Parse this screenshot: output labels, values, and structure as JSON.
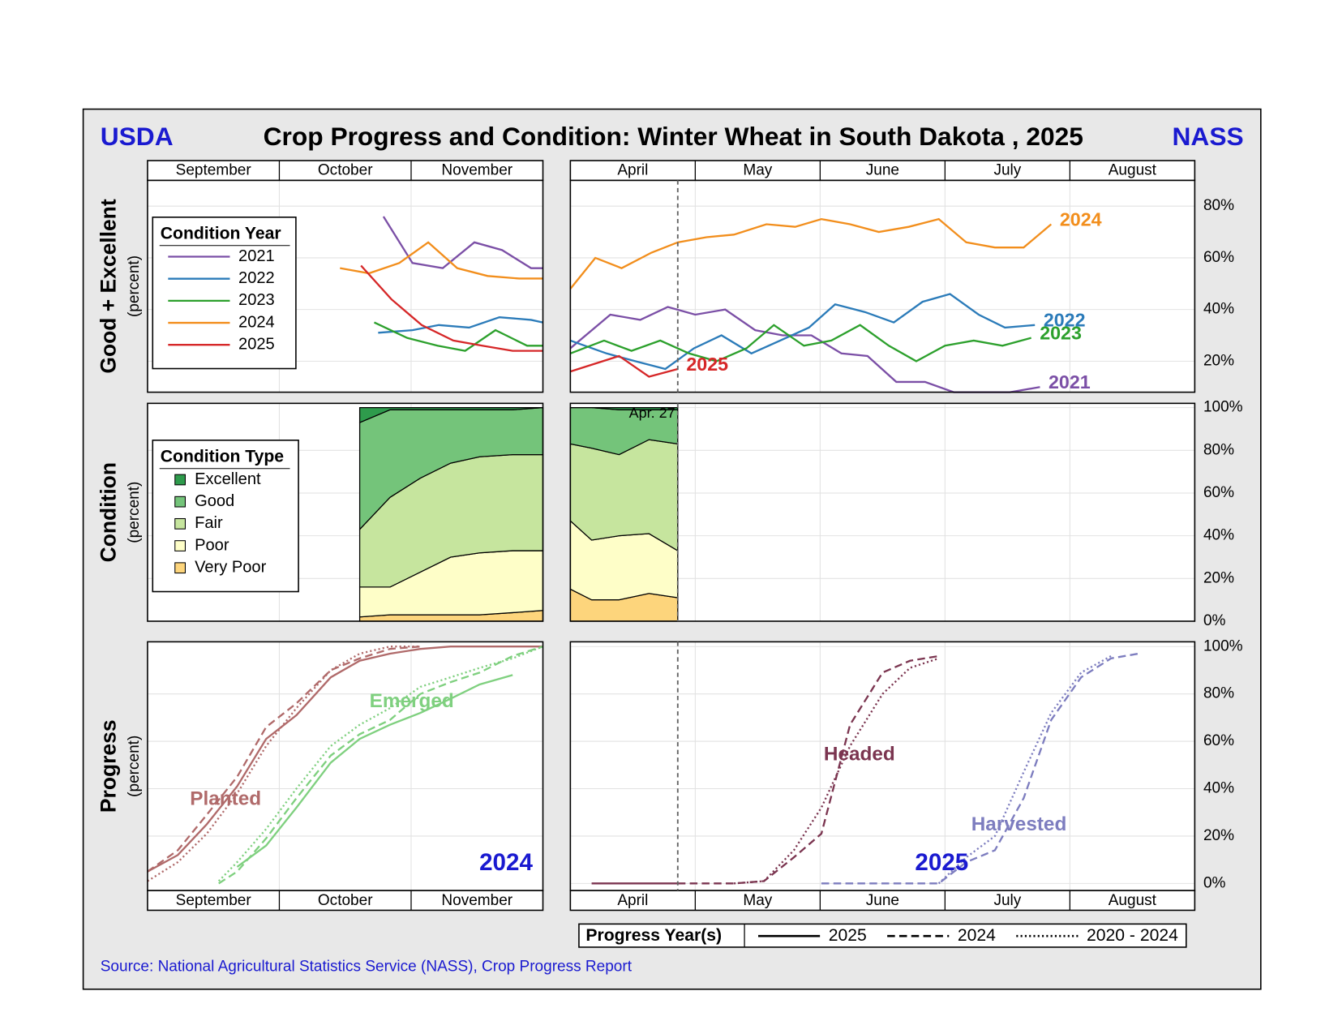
{
  "header": {
    "left": "USDA",
    "title": "Crop Progress and Condition: Winter Wheat in South Dakota , 2025",
    "right": "NASS"
  },
  "source": "Source: National Agricultural Statistics Service (NASS), Crop Progress Report",
  "progress_legend": {
    "title": "Progress Year(s)",
    "entries": [
      {
        "label": "2025",
        "style": "solid"
      },
      {
        "label": "2024",
        "style": "dashed"
      },
      {
        "label": "2020 - 2024",
        "style": "dotted"
      }
    ]
  },
  "chart_data": [
    {
      "type": "line",
      "y_label": "Good + Excellent",
      "y_sublabel": "(percent)",
      "months": [
        "September",
        "October",
        "November"
      ],
      "months_position": "top",
      "xlim": [
        0,
        3
      ],
      "xticks": [
        1,
        2
      ],
      "ylim": [
        8,
        90
      ],
      "yticks": [
        20,
        40,
        60,
        80
      ],
      "grid": true,
      "legend": "upper left",
      "legend_title": "Condition Year",
      "series": [
        {
          "name": "2021",
          "color": "#7b4fa6",
          "x": [
            1.79,
            2.01,
            2.24,
            2.48,
            2.69,
            2.91,
            3.0
          ],
          "values": [
            76,
            58,
            56,
            66,
            63,
            56,
            56
          ]
        },
        {
          "name": "2022",
          "color": "#2b7bb9",
          "x": [
            1.75,
            2.01,
            2.21,
            2.44,
            2.67,
            2.91,
            3.0
          ],
          "values": [
            31,
            32,
            34,
            33,
            37,
            36,
            35
          ]
        },
        {
          "name": "2023",
          "color": "#2ca02c",
          "x": [
            1.72,
            1.97,
            2.2,
            2.41,
            2.64,
            2.88,
            3.0
          ],
          "values": [
            35,
            29,
            26,
            24,
            32,
            26,
            26
          ]
        },
        {
          "name": "2024",
          "color": "#f28e1c",
          "x": [
            1.46,
            1.68,
            1.91,
            2.13,
            2.35,
            2.58,
            2.82,
            3.0
          ],
          "values": [
            56,
            54,
            58,
            66,
            56,
            53,
            52,
            52
          ]
        },
        {
          "name": "2025",
          "color": "#d62728",
          "x": [
            1.62,
            1.85,
            2.08,
            2.32,
            2.54,
            2.77,
            3.0
          ],
          "values": [
            57,
            44,
            34,
            28,
            26,
            24,
            24
          ]
        }
      ]
    },
    {
      "type": "line",
      "months": [
        "April",
        "May",
        "June",
        "July",
        "August"
      ],
      "months_position": "top",
      "series_labels": "end",
      "xlim": [
        0,
        5
      ],
      "xticks": [
        1,
        2,
        3,
        4
      ],
      "ylim": [
        8,
        90
      ],
      "grid": true,
      "yticks": [
        {
          "value": 20,
          "label": "20%"
        },
        {
          "value": 40,
          "label": "40%"
        },
        {
          "value": 60,
          "label": "60%"
        },
        {
          "value": 80,
          "label": "80%"
        }
      ],
      "series": [
        {
          "name": "2021",
          "color": "#7b4fa6",
          "x": [
            0,
            0.32,
            0.56,
            0.78,
            1.0,
            1.24,
            1.48,
            1.7,
            1.93,
            2.17,
            2.38,
            2.61,
            2.84,
            3.07,
            3.3,
            3.52,
            3.76
          ],
          "values": [
            25,
            38,
            36,
            41,
            38,
            40,
            32,
            30,
            30,
            23,
            22,
            12,
            12,
            8,
            8,
            8,
            10
          ]
        },
        {
          "name": "2022",
          "color": "#2b7bb9",
          "x": [
            0,
            0.29,
            0.52,
            0.76,
            0.99,
            1.21,
            1.45,
            1.68,
            1.91,
            2.12,
            2.36,
            2.59,
            2.82,
            3.04,
            3.27,
            3.48,
            3.72
          ],
          "values": [
            28,
            23,
            20,
            17,
            25,
            30,
            23,
            28,
            33,
            42,
            39,
            35,
            43,
            46,
            38,
            33,
            34
          ]
        },
        {
          "name": "2023",
          "color": "#2ca02c",
          "x": [
            0,
            0.27,
            0.49,
            0.72,
            0.95,
            1.17,
            1.41,
            1.63,
            1.87,
            2.09,
            2.32,
            2.55,
            2.77,
            3.0,
            3.23,
            3.46,
            3.69
          ],
          "values": [
            23,
            28,
            24,
            28,
            23,
            20,
            25,
            34,
            26,
            28,
            34,
            26,
            20,
            26,
            28,
            26,
            29
          ]
        },
        {
          "name": "2024",
          "color": "#f28e1c",
          "x": [
            0,
            0.2,
            0.41,
            0.65,
            0.86,
            1.09,
            1.31,
            1.57,
            1.8,
            2.01,
            2.24,
            2.47,
            2.71,
            2.95,
            3.17,
            3.4,
            3.63,
            3.85
          ],
          "values": [
            48,
            60,
            56,
            62,
            66,
            68,
            69,
            73,
            72,
            75,
            73,
            70,
            72,
            75,
            66,
            64,
            64,
            73
          ]
        },
        {
          "name": "2025",
          "color": "#d62728",
          "x": [
            0,
            0.39,
            0.63,
            0.86
          ],
          "values": [
            16,
            22,
            14,
            17
          ]
        }
      ]
    },
    {
      "type": "area",
      "y_label": "Condition",
      "y_sublabel": "(percent)",
      "legend": "upper left",
      "legend_title": "Condition Type",
      "xlim": [
        0,
        3
      ],
      "xticks": [
        1,
        2
      ],
      "ylim": [
        0,
        102
      ],
      "yticks": [
        20,
        40,
        60,
        80
      ],
      "grid": true,
      "x": [
        1.61,
        1.84,
        2.07,
        2.3,
        2.52,
        2.77,
        3.0
      ],
      "series": [
        {
          "name": "Excellent",
          "color": "#2e9b4c",
          "values": [
            7,
            1,
            1,
            1,
            1,
            1,
            0
          ]
        },
        {
          "name": "Good",
          "color": "#74c47a",
          "values": [
            50,
            41,
            32,
            25,
            22,
            21,
            22
          ]
        },
        {
          "name": "Fair",
          "color": "#c6e59e",
          "values": [
            27,
            42,
            44,
            44,
            45,
            45,
            45
          ]
        },
        {
          "name": "Poor",
          "color": "#fefec8",
          "values": [
            14,
            13,
            20,
            27,
            29,
            29,
            28
          ]
        },
        {
          "name": "Very Poor",
          "color": "#fdd57c",
          "values": [
            2,
            3,
            3,
            3,
            3,
            4,
            5
          ]
        }
      ]
    },
    {
      "type": "area",
      "xlim": [
        0,
        5
      ],
      "xticks": [
        1,
        2,
        3,
        4
      ],
      "ylim": [
        0,
        102
      ],
      "grid": true,
      "yticks": [
        {
          "value": 0,
          "label": "0%"
        },
        {
          "value": 20,
          "label": "20%"
        },
        {
          "value": 40,
          "label": "40%"
        },
        {
          "value": 60,
          "label": "60%"
        },
        {
          "value": 80,
          "label": "80%"
        },
        {
          "value": 100,
          "label": "100%"
        }
      ],
      "marker": {
        "x": 0.86,
        "label": "Apr. 27"
      },
      "x": [
        0,
        0.17,
        0.39,
        0.63,
        0.86
      ],
      "series": [
        {
          "color": "#2e9b4c",
          "values": [
            0,
            0,
            1,
            1,
            1
          ]
        },
        {
          "color": "#74c47a",
          "values": [
            17,
            19,
            21,
            14,
            16
          ]
        },
        {
          "color": "#c6e59e",
          "values": [
            36,
            43,
            38,
            44,
            50
          ]
        },
        {
          "color": "#fefec8",
          "values": [
            32,
            28,
            30,
            28,
            22
          ]
        },
        {
          "color": "#fdd57c",
          "values": [
            15,
            10,
            10,
            13,
            11
          ]
        }
      ]
    },
    {
      "type": "line",
      "y_label": "Progress",
      "y_sublabel": "(percent)",
      "months": [
        "September",
        "October",
        "November"
      ],
      "months_position": "bottom",
      "year_label": "2024",
      "xlim": [
        0,
        3
      ],
      "xticks": [
        1,
        2
      ],
      "ylim": [
        -3,
        102
      ],
      "yticks": [
        20,
        40,
        60,
        80
      ],
      "grid": true,
      "groups": [
        {
          "name": "Planted",
          "color": "#b06a6a",
          "series": [
            {
              "style": "solid",
              "x": [
                0,
                0.23,
                0.45,
                0.68,
                0.9,
                1.13,
                1.39,
                1.61,
                1.84,
                2.07,
                2.3,
                2.52,
                2.77,
                3.0
              ],
              "values": [
                5,
                12,
                25,
                41,
                61,
                71,
                87,
                94,
                97,
                99,
                100,
                100,
                100,
                100
              ]
            },
            {
              "style": "dashed",
              "x": [
                0,
                0.23,
                0.45,
                0.68,
                0.9,
                1.13,
                1.39,
                1.61,
                1.84,
                2.07
              ],
              "values": [
                5,
                14,
                29,
                45,
                66,
                76,
                90,
                95,
                99,
                100
              ]
            },
            {
              "style": "dotted",
              "x": [
                0,
                0.23,
                0.45,
                0.68,
                0.9,
                1.13,
                1.39,
                1.61,
                1.84,
                2.07
              ],
              "values": [
                1,
                9,
                21,
                38,
                58,
                74,
                90,
                97,
                100,
                100
              ]
            }
          ]
        },
        {
          "name": "Emerged",
          "color": "#7fd07f",
          "series": [
            {
              "style": "solid",
              "x": [
                0.68,
                0.9,
                1.13,
                1.39,
                1.61,
                1.84,
                2.07,
                2.3,
                2.52,
                2.77
              ],
              "values": [
                7,
                16,
                32,
                51,
                61,
                67,
                72,
                78,
                84,
                88
              ]
            },
            {
              "style": "dashed",
              "x": [
                0.54,
                0.68,
                0.9,
                1.13,
                1.39,
                1.61,
                1.84,
                2.07,
                2.3,
                2.52,
                2.77,
                3.0
              ],
              "values": [
                0,
                5,
                19,
                36,
                54,
                63,
                69,
                80,
                85,
                89,
                96,
                100
              ]
            },
            {
              "style": "dotted",
              "x": [
                0.54,
                0.68,
                0.9,
                1.13,
                1.39,
                1.61,
                1.84,
                2.07,
                2.3,
                2.52,
                2.77,
                3.0
              ],
              "values": [
                1,
                9,
                23,
                40,
                58,
                67,
                74,
                83,
                87,
                91,
                95,
                100
              ]
            }
          ]
        }
      ]
    },
    {
      "type": "line",
      "months": [
        "April",
        "May",
        "June",
        "July",
        "August"
      ],
      "months_position": "bottom",
      "year_label": "2025",
      "xlim": [
        0,
        5
      ],
      "xticks": [
        1,
        2,
        3,
        4
      ],
      "ylim": [
        -3,
        102
      ],
      "grid": true,
      "yticks": [
        {
          "value": 0,
          "label": "0%"
        },
        {
          "value": 20,
          "label": "20%"
        },
        {
          "value": 40,
          "label": "40%"
        },
        {
          "value": 60,
          "label": "60%"
        },
        {
          "value": 80,
          "label": "80%"
        },
        {
          "value": 100,
          "label": "100%"
        }
      ],
      "groups": [
        {
          "name": "Headed",
          "color": "#7b3550",
          "series": [
            {
              "style": "solid",
              "x": [
                0.17,
                0.39,
                0.63,
                0.86
              ],
              "values": [
                0,
                0,
                0,
                0
              ]
            },
            {
              "style": "dashed",
              "x": [
                0.86,
                1.31,
                1.55,
                1.79,
                2.01,
                2.24,
                2.5,
                2.72,
                2.95
              ],
              "values": [
                0,
                0,
                1,
                11,
                21,
                67,
                89,
                94,
                96
              ]
            },
            {
              "style": "dotted",
              "x": [
                1.31,
                1.55,
                1.79,
                2.01,
                2.24,
                2.5,
                2.72,
                2.95
              ],
              "values": [
                0,
                1,
                14,
                32,
                58,
                80,
                91,
                95
              ]
            }
          ]
        },
        {
          "name": "Harvested",
          "color": "#7d7dbf",
          "series": [
            {
              "style": "dashed",
              "x": [
                2.01,
                2.95,
                3.17,
                3.4,
                3.63,
                3.85,
                4.09,
                4.33,
                4.55
              ],
              "values": [
                0,
                0,
                9,
                14,
                36,
                69,
                87,
                95,
                97
              ]
            },
            {
              "style": "dotted",
              "x": [
                2.95,
                3.17,
                3.4,
                3.63,
                3.85,
                4.09,
                4.33
              ],
              "values": [
                0,
                11,
                20,
                47,
                72,
                89,
                96
              ]
            }
          ]
        }
      ]
    }
  ]
}
